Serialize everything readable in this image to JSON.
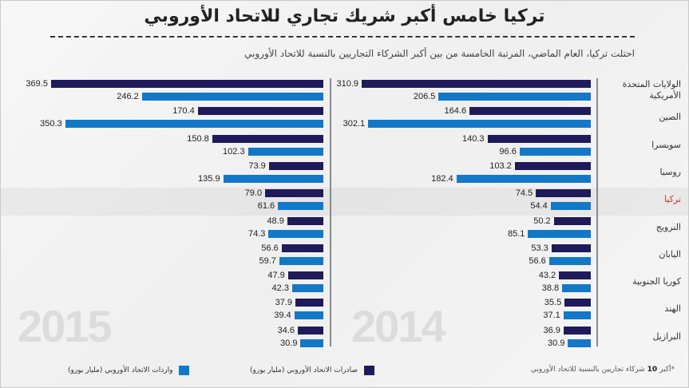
{
  "title": "تركيا خامس أكبر شريك تجاري للاتحاد الأوروبي",
  "subtitle": "احتلت تركيا، العام الماضي، المرتبة الخامسة من بين أكبر الشركاء التجاريين بالنسبة للاتحاد الأوروبي",
  "legend": {
    "exports_label": "صادرات الاتحاد الأوروبي (مليار يورو)",
    "imports_label": "واردات الاتحاد الأوروبي (مليار يورو)",
    "exports_color": "#1f1b5a",
    "imports_color": "#1278c7"
  },
  "footnote": {
    "prefix": "*أكبر",
    "number": "10",
    "suffix": "شركاء تجاريين بالنسبة للاتحاد الأوروبي"
  },
  "highlight_country": "تركيا",
  "highlight_color": "#c0392b",
  "chart_data": [
    {
      "type": "bar",
      "orientation": "horizontal",
      "title": "2015",
      "unit": "مليار يورو",
      "categories": [
        "الولايات المتحدة الأمريكية",
        "الصين",
        "سويسرا",
        "روسيا",
        "تركيا",
        "النرويج",
        "اليابان",
        "كوريا الجنوبية",
        "الهند",
        "البرازيل"
      ],
      "series": [
        {
          "name": "صادرات الاتحاد الأوروبي (مليار يورو)",
          "values": [
            369.5,
            170.4,
            150.8,
            73.9,
            79.0,
            48.9,
            56.6,
            47.9,
            37.9,
            34.6
          ]
        },
        {
          "name": "واردات الاتحاد الأوروبي (مليار يورو)",
          "values": [
            246.2,
            350.3,
            102.3,
            135.9,
            61.6,
            74.3,
            59.7,
            42.3,
            39.4,
            30.9
          ]
        }
      ]
    },
    {
      "type": "bar",
      "orientation": "horizontal",
      "title": "2014",
      "unit": "مليار يورو",
      "categories": [
        "الولايات المتحدة الأمريكية",
        "الصين",
        "سويسرا",
        "روسيا",
        "تركيا",
        "النرويج",
        "اليابان",
        "كوريا الجنوبية",
        "الهند",
        "البرازيل"
      ],
      "series": [
        {
          "name": "صادرات الاتحاد الأوروبي (مليار يورو)",
          "values": [
            310.9,
            164.6,
            140.3,
            103.2,
            74.5,
            50.2,
            53.3,
            43.2,
            35.5,
            36.9
          ]
        },
        {
          "name": "واردات الاتحاد الأوروبي (مليار يورو)",
          "values": [
            206.5,
            302.1,
            96.6,
            182.4,
            54.4,
            85.1,
            56.6,
            38.8,
            37.1,
            30.9
          ]
        }
      ]
    }
  ],
  "country_labels": [
    {
      "line1": "الولايات المتحدة",
      "line2": "الأمريكية"
    },
    {
      "line1": "الصين",
      "line2": ""
    },
    {
      "line1": "سويسرا",
      "line2": ""
    },
    {
      "line1": "روسيا",
      "line2": ""
    },
    {
      "line1": "تركيا",
      "line2": ""
    },
    {
      "line1": "النرويج",
      "line2": ""
    },
    {
      "line1": "اليابان",
      "line2": ""
    },
    {
      "line1": "كوريا الجنوبية",
      "line2": ""
    },
    {
      "line1": "الهند",
      "line2": ""
    },
    {
      "line1": "البرازيل",
      "line2": ""
    }
  ]
}
